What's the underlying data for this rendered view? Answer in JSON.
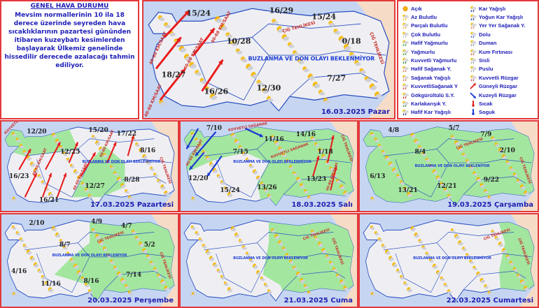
{
  "general": {
    "title": "GENEL HAVA DURUMU",
    "text": "Mevsim normallerinin 10 ila 18 derece üzerinde seyreden hava sıcaklıklarının pazartesi gününden itibaren kuzeybatı kesimlerden başlayarak Ülkemiz genelinde hissedilir derecede azalacağı tahmin ediliyor."
  },
  "legend": {
    "items": [
      {
        "label": "Açık",
        "icon": "sun-icon",
        "color": "#f5b800"
      },
      {
        "label": "Az Bulutlu",
        "icon": "sun-small-cloud-icon",
        "color": "#f5c400"
      },
      {
        "label": "Parçalı Bulutlu",
        "icon": "sun-cloud-icon",
        "color": "#f0a040"
      },
      {
        "label": "Çok Bulutlu",
        "icon": "cloud-icon",
        "color": "#bbbbbb"
      },
      {
        "label": "Hafif Yağmurlu",
        "icon": "light-rain-icon",
        "color": "#2a9a2a"
      },
      {
        "label": "Yağmurlu",
        "icon": "rain-icon",
        "color": "#2a9a2a"
      },
      {
        "label": "Kuvvetli Yağmurlu",
        "icon": "heavy-rain-icon",
        "color": "#1f7a1f"
      },
      {
        "label": "Hafif Sağanak Y.",
        "icon": "light-shower-icon",
        "color": "#e07050"
      },
      {
        "label": "Sağanak Yağışlı",
        "icon": "shower-icon",
        "color": "#e07050"
      },
      {
        "label": "KuvvetliSağanak Y",
        "icon": "heavy-shower-icon",
        "color": "#d04040"
      },
      {
        "label": "Gökgürültülü S.Y.",
        "icon": "thunderstorm-icon",
        "color": "#d02020"
      },
      {
        "label": "Karlakarışık Y.",
        "icon": "sleet-icon",
        "color": "#2a7a4a"
      },
      {
        "label": "Hafif Kar Yağışlı",
        "icon": "light-snow-icon",
        "color": "#1a2a80"
      },
      {
        "label": "Kar Yağışlı",
        "icon": "snow-icon",
        "color": "#1a2a80"
      },
      {
        "label": "Yoğun Kar Yağışlı",
        "icon": "heavy-snow-icon",
        "color": "#1a2a80"
      },
      {
        "label": "Yer Yer Sağanak Y.",
        "icon": "scattered-shower-icon",
        "color": "#e07050"
      },
      {
        "label": "Dolu",
        "icon": "hail-icon",
        "color": "#4060c0"
      },
      {
        "label": "Duman",
        "icon": "smoke-icon",
        "color": "#888888"
      },
      {
        "label": "Kum Fırtınası",
        "icon": "sandstorm-icon",
        "color": "#c06030"
      },
      {
        "label": "Sisli",
        "icon": "fog-icon",
        "color": "#999999"
      },
      {
        "label": "Puslu",
        "icon": "haze-icon",
        "color": "#aaaaaa"
      },
      {
        "label": "Kuvvetli Rüzgar",
        "icon": "strong-wind-icon",
        "color": "#d04040"
      },
      {
        "label": "Güneyli Rüzgar",
        "icon": "south-wind-arrow-icon",
        "color": "#e02020"
      },
      {
        "label": "Kuzeyli Rüzgar",
        "icon": "north-wind-arrow-icon",
        "color": "#1a3ad0"
      },
      {
        "label": "Sıcak",
        "icon": "hot-thermometer-icon",
        "color": "#e02020"
      },
      {
        "label": "Soguk",
        "icon": "cold-thermometer-icon",
        "color": "#1a3ad0"
      }
    ]
  },
  "colors": {
    "border": "#e3383a",
    "sea": "#c6d6f2",
    "land": "#efeff3",
    "precip_area": "#a3e6a0",
    "neighbor": "#f6dcc6",
    "text": "#1d1db8"
  },
  "maps": [
    {
      "date": "16.03.2025 Pazar",
      "banner": "BUZLANMA VE DON OLAYI BEKLENMİYOR",
      "temps": [
        "15/24",
        "16/29",
        "15/24",
        "10/28",
        "0/18",
        "18/27",
        "16/26",
        "12/30",
        "7/27"
      ],
      "warnings": [
        "40-60 KM/SAAT",
        "40-60 KM/SAAT",
        "40-60 KM/SAAT",
        "40-60 KM/SAAT",
        "ÇIĞ TEHLİKESİ",
        "ÇIĞ TEHLİKESİ"
      ]
    },
    {
      "date": "17.03.2025 Pazartesi",
      "banner": "BUZLANMA VE DON OLAYI BEKLENMİYOR",
      "temps": [
        "12/20",
        "15/20",
        "17/22",
        "12/25",
        "8/16",
        "16/23",
        "12/27",
        "8/28",
        "16/21"
      ],
      "warnings": [
        "KUVVETLİ",
        "40-60 KM/SAAT",
        "40-60 KM/SAAT",
        "40-60 KM/SAAT",
        "ÇIĞ TEHLİKESİ"
      ]
    },
    {
      "date": "18.03.2025 Salı",
      "banner": "BUZLANMA VE DON OLAYI BEKLENMİYOR",
      "temps": [
        "7/10",
        "11/16",
        "14/16",
        "7/15",
        "1/18",
        "12/20",
        "15/24",
        "13/26",
        "13/23"
      ],
      "warnings": [
        "40-60 KM/SAAT",
        "KUVVETLİ SAĞANAK",
        "KUVVETLİ SAĞANAK",
        "40-60 KM/SAAT",
        "ÇIĞ TEHLİKESİ"
      ]
    },
    {
      "date": "19.03.2025 Çarşamba",
      "banner": "BUZLANMA VE DON OLAYI BEKLENİYOR",
      "temps": [
        "4/8",
        "5/7",
        "7/9",
        "8/4",
        "2/10",
        "6/13",
        "13/21",
        "12/21",
        "9/22"
      ],
      "warnings": [
        "ÇIĞ TEHLİKESİ",
        "ÇIĞ TEHLİKESİ"
      ]
    },
    {
      "date": "20.03.2025 Perşembe",
      "banner": "BUZLANMA VE DON OLAYI BEKLENİYOR",
      "temps": [
        "2/10",
        "4/9",
        "4/7",
        "8/7",
        "5/2",
        "4/16",
        "11/16",
        "8/16",
        "7/14"
      ],
      "warnings": [
        "ÇIĞ TEHLİKESİ",
        "ÇIĞ TEHLİKESİ"
      ]
    },
    {
      "date": "21.03.2025 Cuma",
      "banner": "BUZLANMA VE DON OLAYI BEKLENİYOR",
      "temps": [],
      "warnings": [
        "ÇIĞ TEHLİKESİ",
        "ÇIĞ TEHLİKESİ"
      ]
    },
    {
      "date": "22.03.2025 Cumartesi",
      "banner": "BUZLANMA VE DON OLAYI BEKLENMİYOR",
      "temps": [],
      "warnings": [
        "ÇIĞ TEHLİKESİ",
        "ÇIĞ TEHLİKESİ"
      ]
    }
  ]
}
